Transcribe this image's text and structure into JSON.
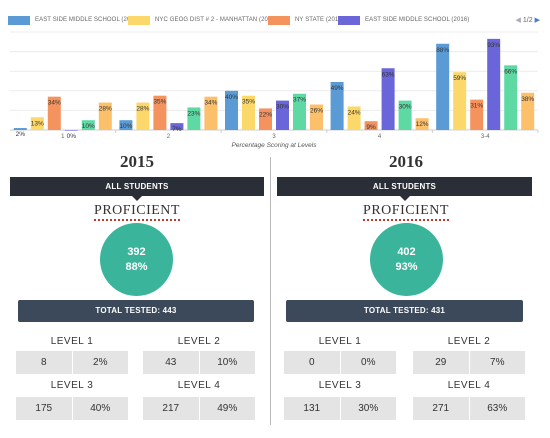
{
  "legend": {
    "items": [
      {
        "label": "EAST SIDE MIDDLE SCHOOL (2015)",
        "color": "#5b9bd5"
      },
      {
        "label": "NYC GEOG DIST # 2 - MANHATTAN (2015)",
        "color": "#fcd86a"
      },
      {
        "label": "NY STATE (2015)",
        "color": "#f5935f"
      },
      {
        "label": "EAST SIDE MIDDLE SCHOOL (2016)",
        "color": "#6a65d8"
      }
    ],
    "page": "1/2",
    "prev_icon": "◀",
    "next_icon": "▶"
  },
  "chart_data": {
    "type": "bar",
    "xlabel": "Percentage Scoring at Levels",
    "categories": [
      "1",
      "2",
      "3",
      "4",
      "3-4"
    ],
    "series": [
      {
        "name": "EAST SIDE MIDDLE SCHOOL (2015)",
        "color": "#5b9bd5",
        "values": [
          2,
          10,
          40,
          49,
          88
        ]
      },
      {
        "name": "NYC GEOG DIST # 2 - MANHATTAN (2015)",
        "color": "#fcd86a",
        "values": [
          13,
          28,
          35,
          24,
          59
        ]
      },
      {
        "name": "NY STATE (2015)",
        "color": "#f5935f",
        "values": [
          34,
          35,
          22,
          9,
          31
        ]
      },
      {
        "name": "EAST SIDE MIDDLE SCHOOL (2016)",
        "color": "#6a65d8",
        "values": [
          0,
          7,
          30,
          63,
          93
        ]
      },
      {
        "color": "#5ed9a4",
        "values": [
          10,
          23,
          37,
          30,
          66
        ]
      },
      {
        "color": "#fcbf6a",
        "values": [
          28,
          34,
          26,
          12,
          38
        ]
      }
    ],
    "ylim": [
      0,
      100
    ],
    "grid": true
  },
  "panels": [
    {
      "year": "2015",
      "group": "ALL STUDENTS",
      "proficient_label": "PROFICIENT",
      "proficient_count": "392",
      "proficient_pct": "88%",
      "total_tested": "TOTAL TESTED: 443",
      "levels": [
        {
          "title": "LEVEL 1",
          "count": "8",
          "pct": "2%"
        },
        {
          "title": "LEVEL 2",
          "count": "43",
          "pct": "10%"
        },
        {
          "title": "LEVEL 3",
          "count": "175",
          "pct": "40%"
        },
        {
          "title": "LEVEL 4",
          "count": "217",
          "pct": "49%"
        }
      ]
    },
    {
      "year": "2016",
      "group": "ALL STUDENTS",
      "proficient_label": "PROFICIENT",
      "proficient_count": "402",
      "proficient_pct": "93%",
      "total_tested": "TOTAL TESTED: 431",
      "levels": [
        {
          "title": "LEVEL 1",
          "count": "0",
          "pct": "0%"
        },
        {
          "title": "LEVEL 2",
          "count": "29",
          "pct": "7%"
        },
        {
          "title": "LEVEL 3",
          "count": "131",
          "pct": "30%"
        },
        {
          "title": "LEVEL 4",
          "count": "271",
          "pct": "63%"
        }
      ]
    }
  ]
}
